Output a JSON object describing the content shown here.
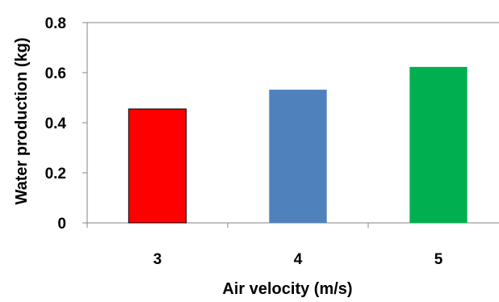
{
  "chart_data": {
    "type": "bar",
    "categories": [
      "3",
      "4",
      "5"
    ],
    "values": [
      0.455,
      0.532,
      0.623
    ],
    "colors": [
      "#ff0000",
      "#4f81bd",
      "#00b050"
    ],
    "xlabel": "Air velocity (m/s)",
    "ylabel": "Water production (kg)",
    "ylim": [
      0,
      0.8
    ],
    "yticks": [
      0,
      0.2,
      0.4,
      0.6,
      0.8
    ],
    "ytick_labels": [
      "0",
      "0.2",
      "0.4",
      "0.6",
      "0.8"
    ],
    "grid": false,
    "legend": "none"
  }
}
